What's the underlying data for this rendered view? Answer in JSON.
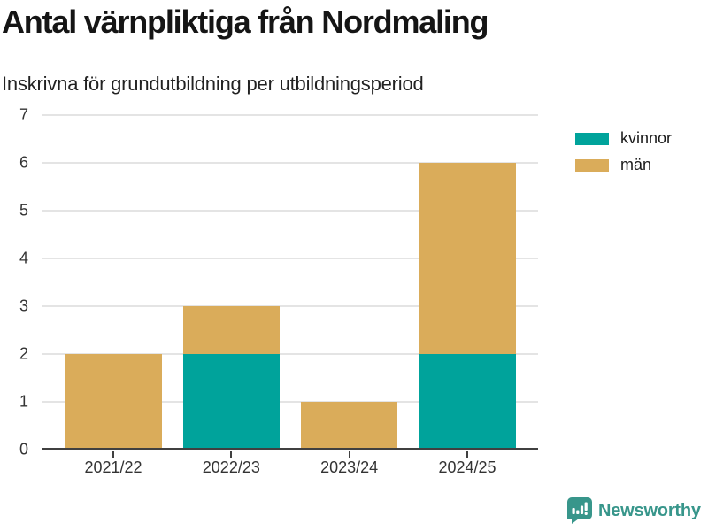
{
  "header": {
    "title": "Antal värnpliktiga från Nordmaling",
    "subtitle": "Inskrivna för grundutbildning per utbildningsperiod"
  },
  "chart_data": {
    "type": "bar",
    "stacked": true,
    "title": "Antal värnpliktiga från Nordmaling",
    "subtitle": "Inskrivna för grundutbildning per utbildningsperiod",
    "categories": [
      "2021/22",
      "2022/23",
      "2023/24",
      "2024/25"
    ],
    "series": [
      {
        "name": "kvinnor",
        "color": "#00A39B",
        "values": [
          0,
          2,
          0,
          2
        ]
      },
      {
        "name": "män",
        "color": "#DAAC5A",
        "values": [
          2,
          1,
          1,
          4
        ]
      }
    ],
    "totals": [
      2,
      3,
      1,
      6
    ],
    "xlabel": "",
    "ylabel": "",
    "ylim": [
      0,
      7
    ],
    "yticks": [
      0,
      1,
      2,
      3,
      4,
      5,
      6,
      7
    ],
    "grid": "horizontal",
    "legend_position": "top-right"
  },
  "colors": {
    "kvinnor": "#00A39B",
    "man": "#DAAC5A",
    "gridline": "#E4E4E4",
    "axis": "#404040",
    "brand": "#38968B"
  },
  "footer": {
    "brand": "Newsworthy"
  }
}
